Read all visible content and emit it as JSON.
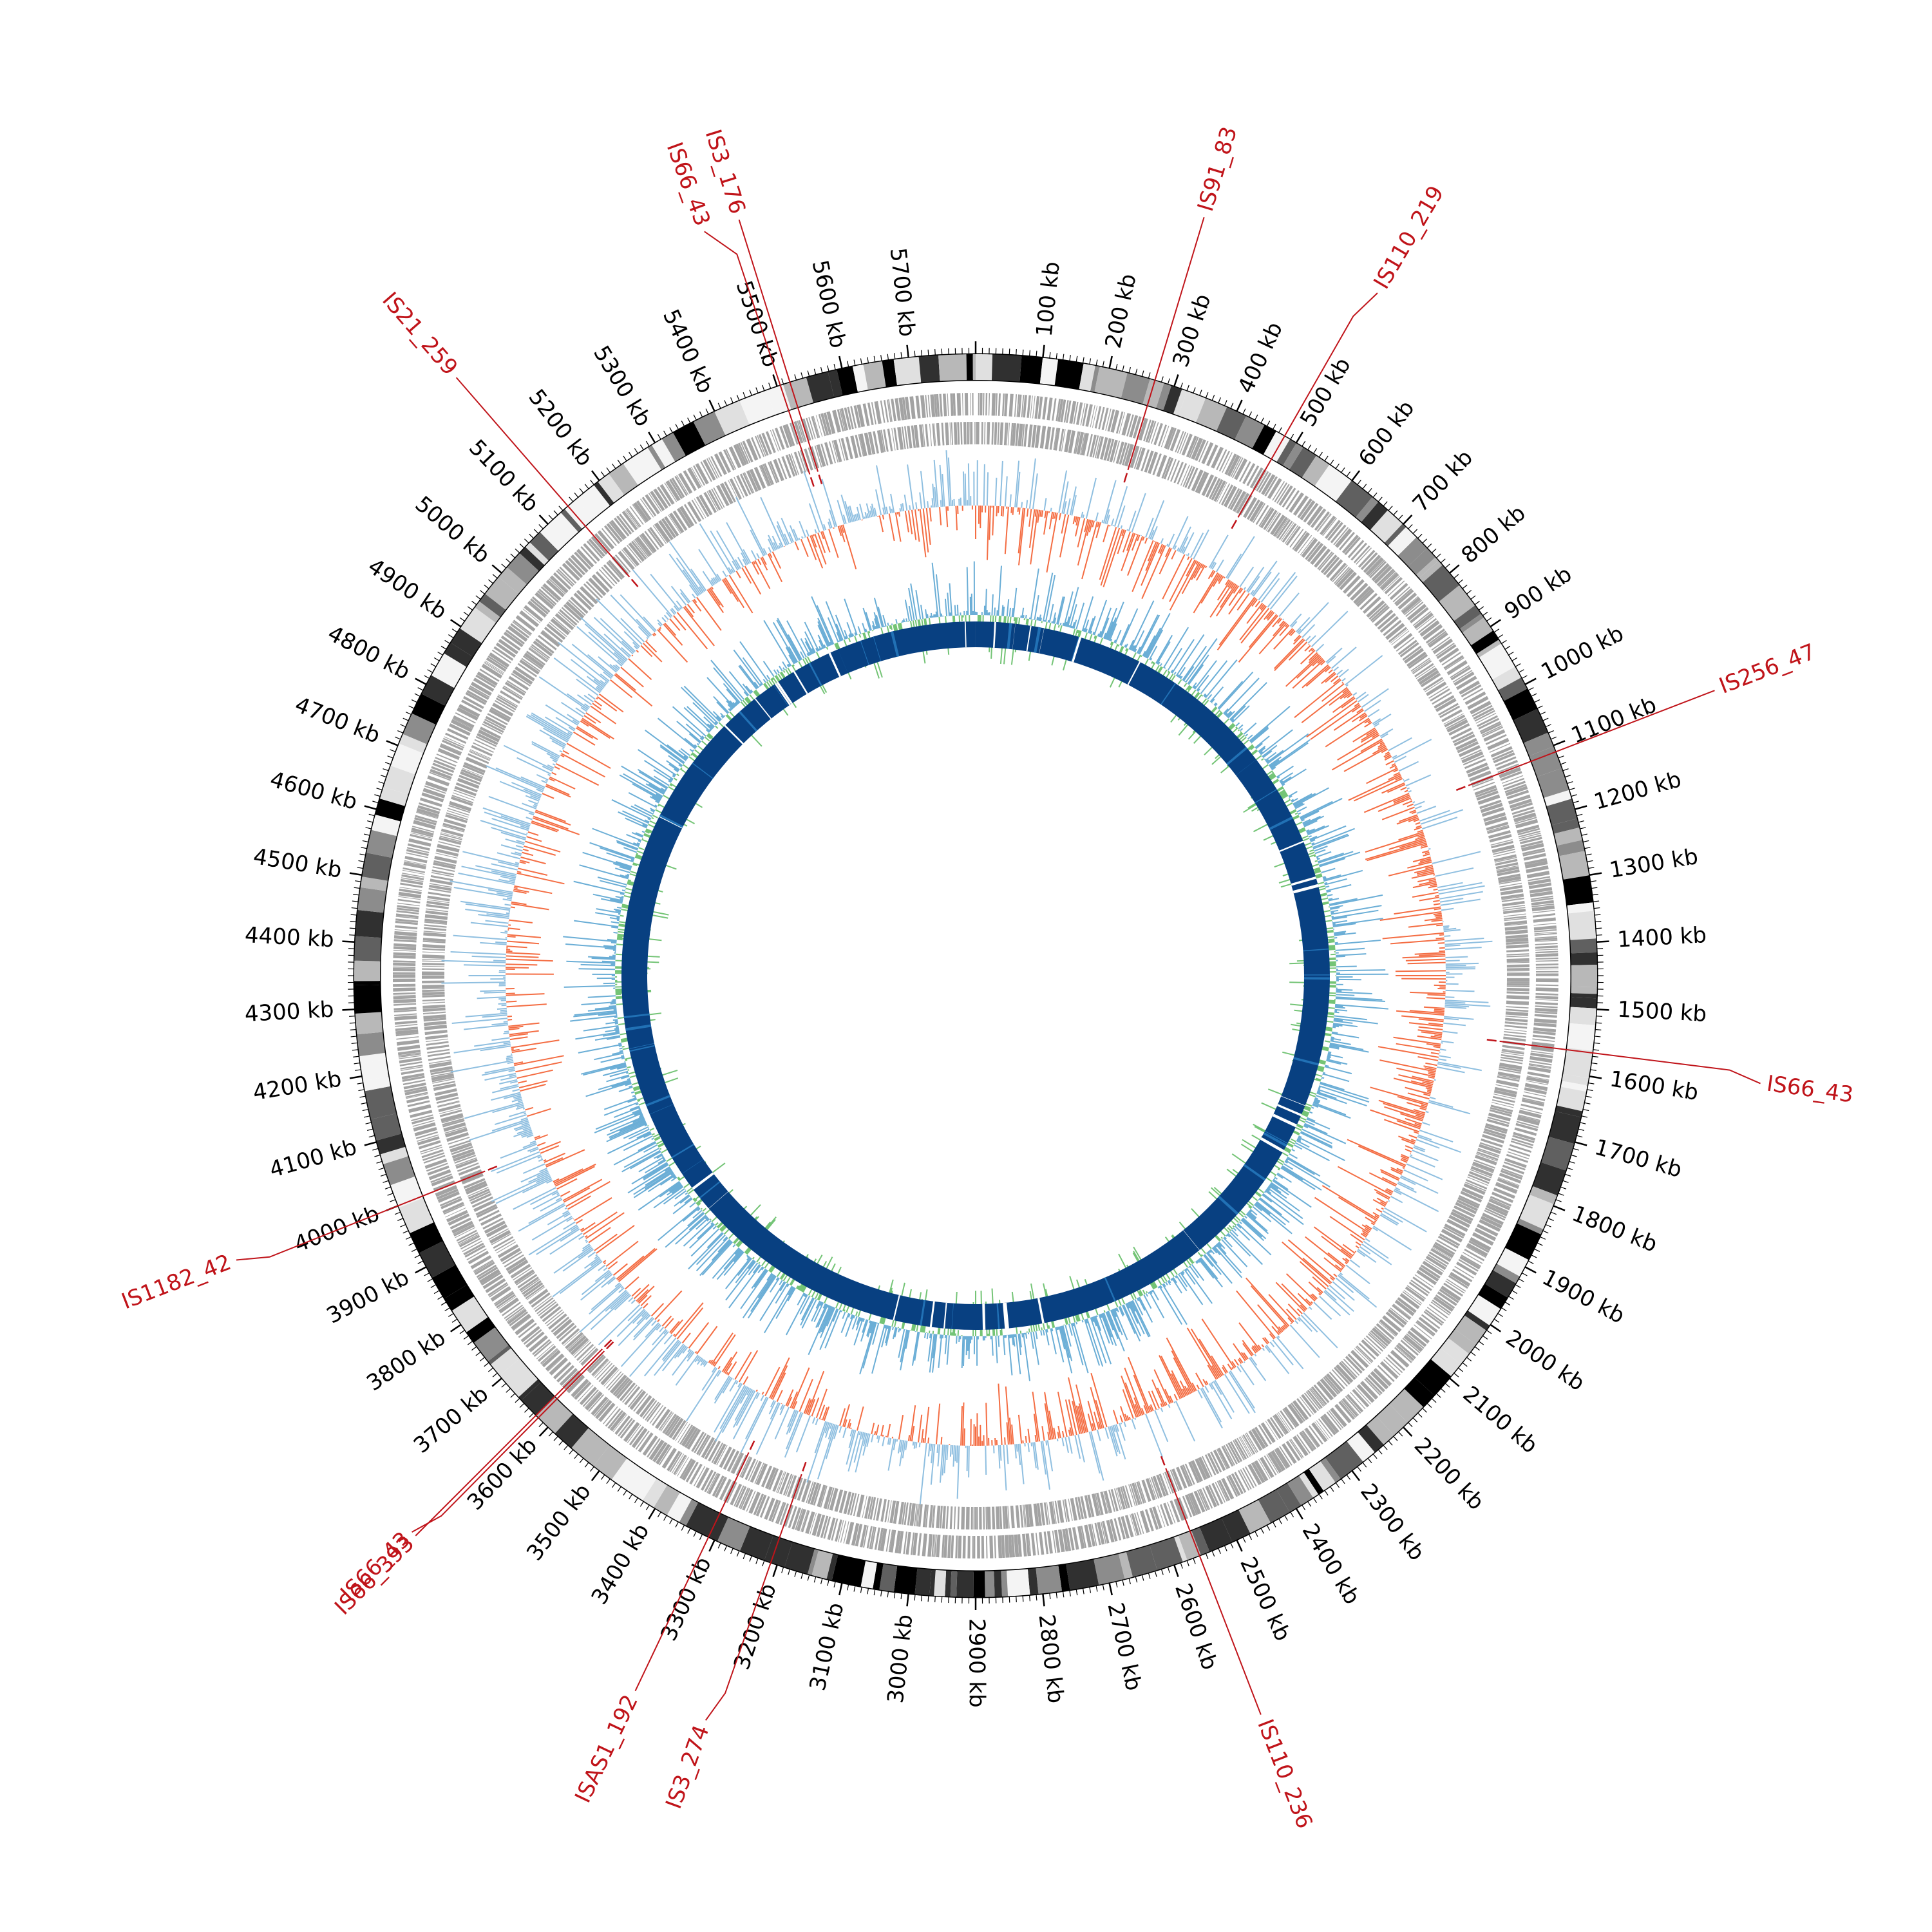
{
  "genome": {
    "total_kb": 5800,
    "tick_step_kb": 100,
    "tick_unit": "kb"
  },
  "colors": {
    "ideogram_shades": [
      "#000000",
      "#303030",
      "#606060",
      "#8c8c8c",
      "#b8b8b8",
      "#e0e0e0",
      "#f4f4f4"
    ],
    "gene_track": "#a3a3a3",
    "skew_positive": "#8fbfe0",
    "skew_negative": "#f46d43",
    "gc_content_high": "#6baed6",
    "gc_content_low": "#74c476",
    "homology_ring": "#084081",
    "homology_highlight": "#2171b5",
    "is_element": "#c0141a"
  },
  "is_elements": [
    {
      "label": "IS3_176",
      "position_kb": 5520
    },
    {
      "label": "IS66_43",
      "position_kb": 5505
    },
    {
      "label": "IS91_83",
      "position_kb": 270
    },
    {
      "label": "IS110_219",
      "position_kb": 480
    },
    {
      "label": "IS256_47",
      "position_kb": 1110
    },
    {
      "label": "IS66_43",
      "position_kb": 1565
    },
    {
      "label": "IS110_236",
      "position_kb": 2560
    },
    {
      "label": "IS3_274",
      "position_kb": 3210
    },
    {
      "label": "ISAS1_192",
      "position_kb": 3310
    },
    {
      "label": "IS66_43",
      "position_kb": 3620
    },
    {
      "label": "IS66_393",
      "position_kb": 3625
    },
    {
      "label": "IS1182_42",
      "position_kb": 4000
    },
    {
      "label": "IS21_259",
      "position_kb": 5140
    }
  ]
}
